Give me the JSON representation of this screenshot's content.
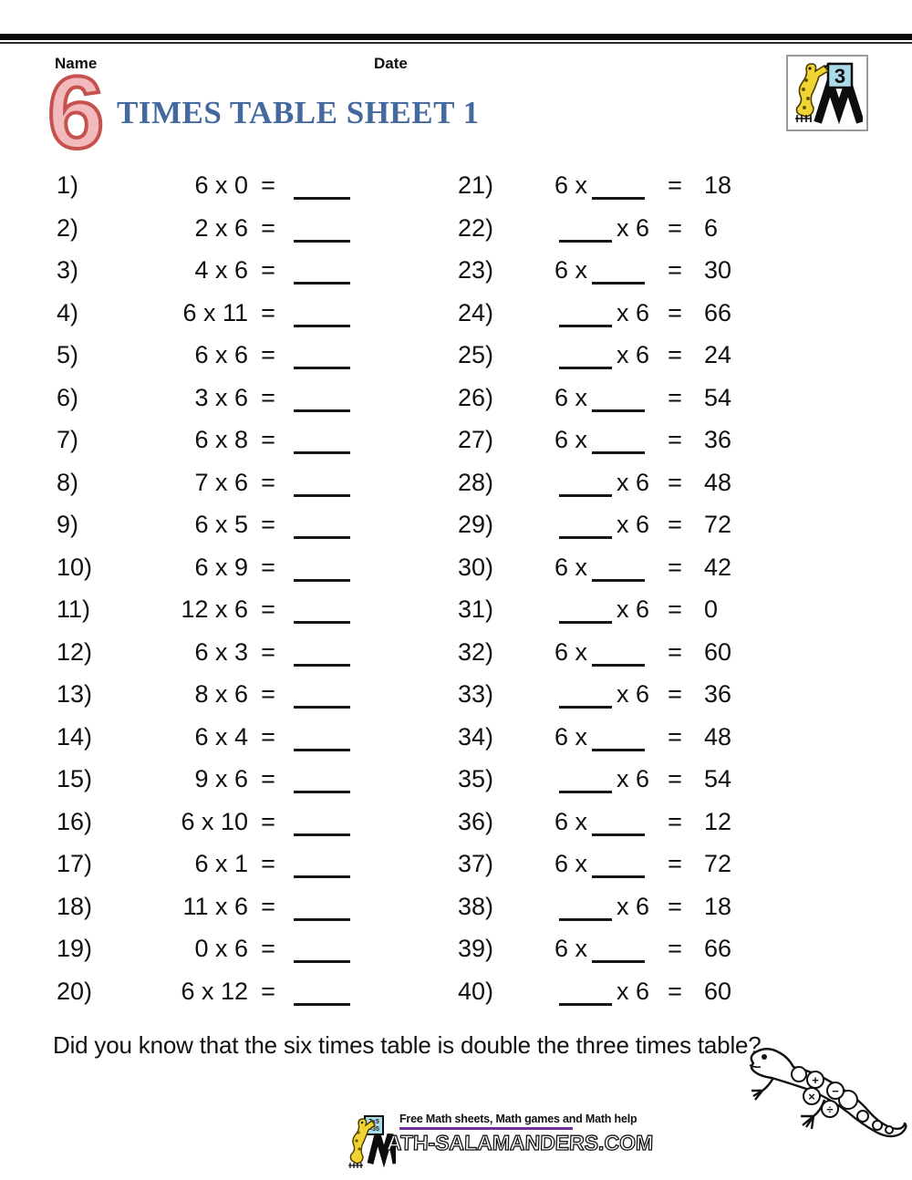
{
  "page": {
    "name_label": "Name",
    "date_label": "Date",
    "big_number": "6",
    "title": "TIMES TABLE SHEET 1",
    "equals": "=",
    "note": "Did you know that the six times table is double the three times table?"
  },
  "colors": {
    "title_blue": "#44699f",
    "big_number_fill": "#f2babc",
    "big_number_outline": "#c5524f",
    "purple_rule": "#7030a0",
    "logo_card_blue": "#a9dbe8",
    "salamander_yellow": "#f0d433"
  },
  "corner_logo": {
    "card_number": "3"
  },
  "footer": {
    "board_line1": "7x5",
    "board_line2": "=35",
    "tagline": "Free Math sheets, Math games and Math help",
    "wordmark": "ATH-SALAMANDERS.COM"
  },
  "gecko_symbols": [
    "+",
    "−",
    "×",
    "÷"
  ],
  "problems_left": [
    {
      "num": "1)",
      "expr": "6 x 0"
    },
    {
      "num": "2)",
      "expr": "2 x 6"
    },
    {
      "num": "3)",
      "expr": "4 x 6"
    },
    {
      "num": "4)",
      "expr": "6 x 11"
    },
    {
      "num": "5)",
      "expr": "6 x 6"
    },
    {
      "num": "6)",
      "expr": "3 x 6"
    },
    {
      "num": "7)",
      "expr": "6 x 8"
    },
    {
      "num": "8)",
      "expr": "7 x 6"
    },
    {
      "num": "9)",
      "expr": "6 x 5"
    },
    {
      "num": "10)",
      "expr": "6 x 9"
    },
    {
      "num": "11)",
      "expr": "12 x 6"
    },
    {
      "num": "12)",
      "expr": "6 x 3"
    },
    {
      "num": "13)",
      "expr": "8 x 6"
    },
    {
      "num": "14)",
      "expr": "6 x 4"
    },
    {
      "num": "15)",
      "expr": "9 x 6"
    },
    {
      "num": "16)",
      "expr": "6 x 10"
    },
    {
      "num": "17)",
      "expr": "6 x 1"
    },
    {
      "num": "18)",
      "expr": "11 x 6"
    },
    {
      "num": "19)",
      "expr": "0 x 6"
    },
    {
      "num": "20)",
      "expr": "6 x 12"
    }
  ],
  "problems_right": [
    {
      "num": "21)",
      "pre": "6 x",
      "post": "",
      "answer": "18"
    },
    {
      "num": "22)",
      "pre": "",
      "post": "x 6",
      "answer": "6"
    },
    {
      "num": "23)",
      "pre": "6 x",
      "post": "",
      "answer": "30"
    },
    {
      "num": "24)",
      "pre": "",
      "post": "x 6",
      "answer": "66"
    },
    {
      "num": "25)",
      "pre": "",
      "post": "x 6",
      "answer": "24"
    },
    {
      "num": "26)",
      "pre": "6 x",
      "post": "",
      "answer": "54"
    },
    {
      "num": "27)",
      "pre": "6 x",
      "post": "",
      "answer": "36"
    },
    {
      "num": "28)",
      "pre": "",
      "post": "x 6",
      "answer": "48"
    },
    {
      "num": "29)",
      "pre": "",
      "post": "x 6",
      "answer": "72"
    },
    {
      "num": "30)",
      "pre": "6 x",
      "post": "",
      "answer": "42"
    },
    {
      "num": "31)",
      "pre": "",
      "post": "x 6",
      "answer": "0"
    },
    {
      "num": "32)",
      "pre": "6 x",
      "post": "",
      "answer": "60"
    },
    {
      "num": "33)",
      "pre": "",
      "post": "x 6",
      "answer": "36"
    },
    {
      "num": "34)",
      "pre": "6 x",
      "post": "",
      "answer": "48"
    },
    {
      "num": "35)",
      "pre": "",
      "post": "x 6",
      "answer": "54"
    },
    {
      "num": "36)",
      "pre": "6 x",
      "post": "",
      "answer": "12"
    },
    {
      "num": "37)",
      "pre": "6 x",
      "post": "",
      "answer": "72"
    },
    {
      "num": "38)",
      "pre": "",
      "post": "x 6",
      "answer": "18"
    },
    {
      "num": "39)",
      "pre": "6 x",
      "post": "",
      "answer": "66"
    },
    {
      "num": "40)",
      "pre": "",
      "post": "x 6",
      "answer": "60"
    }
  ]
}
